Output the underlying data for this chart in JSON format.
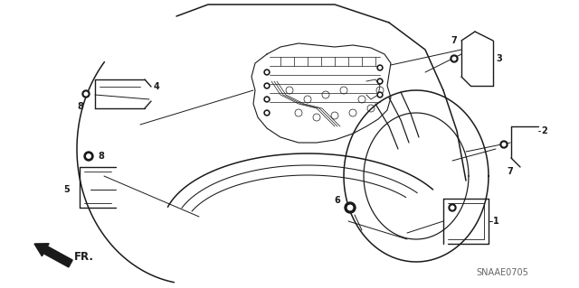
{
  "bg_color": "#ffffff",
  "line_color": "#1a1a1a",
  "fig_width": 6.4,
  "fig_height": 3.19,
  "dpi": 100,
  "watermark": "SNAAE0705",
  "direction_label": "FR.",
  "lw_body": 1.1,
  "lw_part": 1.0,
  "lw_call": 0.7,
  "lw_wire": 0.6
}
